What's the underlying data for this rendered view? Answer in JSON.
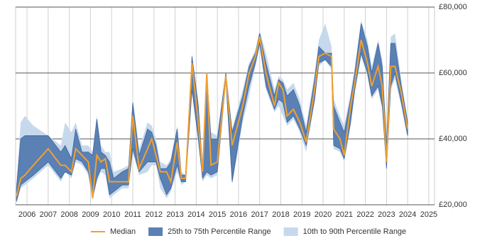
{
  "chart_data": {
    "type": "line",
    "x": [
      2005.5,
      2005.7,
      2005.9,
      2006.3,
      2007.0,
      2007.6,
      2007.8,
      2008.1,
      2008.3,
      2008.6,
      2008.9,
      2009.1,
      2009.3,
      2009.5,
      2009.7,
      2009.9,
      2010.1,
      2010.5,
      2010.8,
      2011.0,
      2011.3,
      2011.7,
      2011.9,
      2012.1,
      2012.3,
      2012.6,
      2012.8,
      2013.1,
      2013.3,
      2013.5,
      2013.8,
      2014.1,
      2014.3,
      2014.5,
      2014.7,
      2015.0,
      2015.4,
      2015.7,
      2016.2,
      2016.5,
      2016.8,
      2017.0,
      2017.3,
      2017.7,
      2017.9,
      2018.1,
      2018.3,
      2018.6,
      2018.9,
      2019.2,
      2019.6,
      2019.8,
      2020.1,
      2020.4,
      2020.5,
      2020.8,
      2021.0,
      2021.3,
      2021.5,
      2021.8,
      2022.1,
      2022.3,
      2022.6,
      2022.8,
      2023.0,
      2023.2,
      2023.4,
      2023.7,
      2024.0
    ],
    "series": [
      {
        "name": "Median",
        "color": "#f0a030",
        "values": [
          22500,
          28000,
          29000,
          32000,
          37000,
          32000,
          32000,
          30000,
          37000,
          35000,
          33000,
          22000,
          35000,
          33000,
          34000,
          27000,
          27000,
          27000,
          27000,
          47000,
          31000,
          37000,
          40000,
          35000,
          30000,
          30000,
          27000,
          39000,
          28000,
          28000,
          63000,
          45000,
          30000,
          60000,
          32000,
          33000,
          59000,
          38000,
          50000,
          60000,
          65000,
          71000,
          60000,
          50000,
          57000,
          55000,
          47000,
          49000,
          45000,
          39000,
          55000,
          65000,
          66000,
          65000,
          43000,
          40000,
          35000,
          50000,
          57000,
          70000,
          63000,
          56000,
          62000,
          56000,
          33000,
          62000,
          62000,
          54000,
          43000
        ]
      },
      {
        "name": "25th to 75th Percentile Range",
        "color": "#5a80b4",
        "low": [
          21000,
          26000,
          27000,
          29000,
          33000,
          28000,
          30000,
          29000,
          34000,
          33000,
          30000,
          22000,
          28000,
          31000,
          31000,
          23000,
          24000,
          26000,
          26000,
          37000,
          30000,
          33000,
          33000,
          33000,
          28000,
          23000,
          25000,
          32000,
          27000,
          27000,
          55000,
          40000,
          28000,
          30000,
          29000,
          30000,
          58000,
          27000,
          47000,
          56000,
          63000,
          69000,
          56000,
          49000,
          52000,
          51000,
          45000,
          47000,
          43000,
          38000,
          52000,
          63000,
          64000,
          62000,
          38000,
          37000,
          34000,
          45000,
          55000,
          66000,
          60000,
          53000,
          56000,
          50000,
          31000,
          56000,
          60000,
          51000,
          41000
        ],
        "high": [
          25000,
          40000,
          41000,
          41000,
          41000,
          36000,
          38000,
          34000,
          43000,
          36000,
          36000,
          35000,
          46000,
          36000,
          35000,
          33000,
          28000,
          30000,
          31000,
          51000,
          35000,
          43000,
          42000,
          38000,
          31000,
          31000,
          33000,
          43000,
          29000,
          29000,
          65000,
          50000,
          31000,
          60000,
          40000,
          40000,
          60000,
          42000,
          53000,
          62000,
          66000,
          72000,
          63000,
          53000,
          58000,
          57000,
          53000,
          55000,
          50000,
          42000,
          58000,
          68000,
          66000,
          66000,
          50000,
          45000,
          42000,
          52000,
          60000,
          75000,
          68000,
          60000,
          69000,
          62000,
          38000,
          69000,
          69000,
          56000,
          45000
        ]
      },
      {
        "name": "10th to 90th Percentile Range",
        "color": "#c6d9ec",
        "low": [
          20500,
          25000,
          26000,
          28000,
          32000,
          27000,
          30000,
          28000,
          33000,
          32000,
          29000,
          21500,
          27000,
          30000,
          29000,
          22000,
          23000,
          25000,
          25000,
          36000,
          29000,
          30000,
          32000,
          32000,
          25000,
          22000,
          24000,
          30000,
          26000,
          27000,
          54000,
          39000,
          27000,
          29000,
          28000,
          29000,
          57000,
          26000,
          45000,
          53000,
          62000,
          68000,
          55000,
          48000,
          50000,
          47000,
          44000,
          46000,
          42000,
          36000,
          51000,
          62000,
          64000,
          61000,
          37000,
          36000,
          33000,
          44000,
          54000,
          65000,
          59000,
          52000,
          55000,
          49000,
          31000,
          55000,
          58000,
          50000,
          40000
        ],
        "high": [
          26000,
          45000,
          47000,
          44000,
          41000,
          38000,
          45000,
          42000,
          45000,
          38000,
          38000,
          36000,
          47000,
          38000,
          36000,
          36000,
          30000,
          31000,
          32000,
          52000,
          37000,
          45000,
          44000,
          40000,
          33000,
          32000,
          34000,
          44000,
          30000,
          29000,
          66000,
          51000,
          32000,
          61000,
          42000,
          41000,
          60000,
          43000,
          55000,
          63000,
          67000,
          73000,
          66000,
          55000,
          59000,
          58000,
          55000,
          57000,
          52000,
          44000,
          60000,
          70000,
          75000,
          68000,
          52000,
          47000,
          44000,
          54000,
          62000,
          76000,
          70000,
          62000,
          70000,
          64000,
          40000,
          71000,
          72000,
          58000,
          46000
        ]
      }
    ],
    "xlim": [
      2005.46,
      2025.27
    ],
    "xticks": [
      2006,
      2007,
      2008,
      2009,
      2010,
      2011,
      2012,
      2013,
      2014,
      2015,
      2016,
      2017,
      2018,
      2019,
      2020,
      2021,
      2022,
      2023,
      2024,
      2025
    ],
    "ylim": [
      20000,
      80000
    ],
    "yticks": [
      {
        "value": 20000,
        "label": "£20,000"
      },
      {
        "value": 40000,
        "label": "£40,000"
      },
      {
        "value": 60000,
        "label": "£60,000"
      },
      {
        "value": 80000,
        "label": "£80,000"
      }
    ],
    "grid": true,
    "legend": "bottom"
  }
}
